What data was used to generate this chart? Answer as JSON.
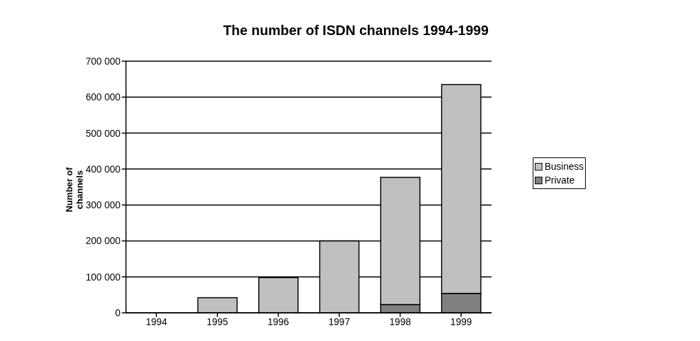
{
  "chart_data": {
    "type": "bar",
    "title": "The number of ISDN channels 1994-1999",
    "ylabel": "Number of channels",
    "categories": [
      "1994",
      "1995",
      "1996",
      "1997",
      "1998",
      "1999"
    ],
    "stacked": true,
    "series": [
      {
        "name": "Private",
        "color": "#808080",
        "values": [
          0,
          0,
          0,
          0,
          23000,
          54000
        ]
      },
      {
        "name": "Business",
        "color": "#c0c0c0",
        "values": [
          0,
          42000,
          98000,
          200000,
          354000,
          581000
        ]
      }
    ],
    "ylim": [
      0,
      700000
    ],
    "yticks": [
      {
        "value": 0,
        "label": "0"
      },
      {
        "value": 100000,
        "label": "100 000"
      },
      {
        "value": 200000,
        "label": "200 000"
      },
      {
        "value": 300000,
        "label": "300 000"
      },
      {
        "value": 400000,
        "label": "400 000"
      },
      {
        "value": 500000,
        "label": "500 000"
      },
      {
        "value": 600000,
        "label": "600 000"
      },
      {
        "value": 700000,
        "label": "700 000"
      }
    ],
    "grid": "y",
    "legend": "right"
  }
}
